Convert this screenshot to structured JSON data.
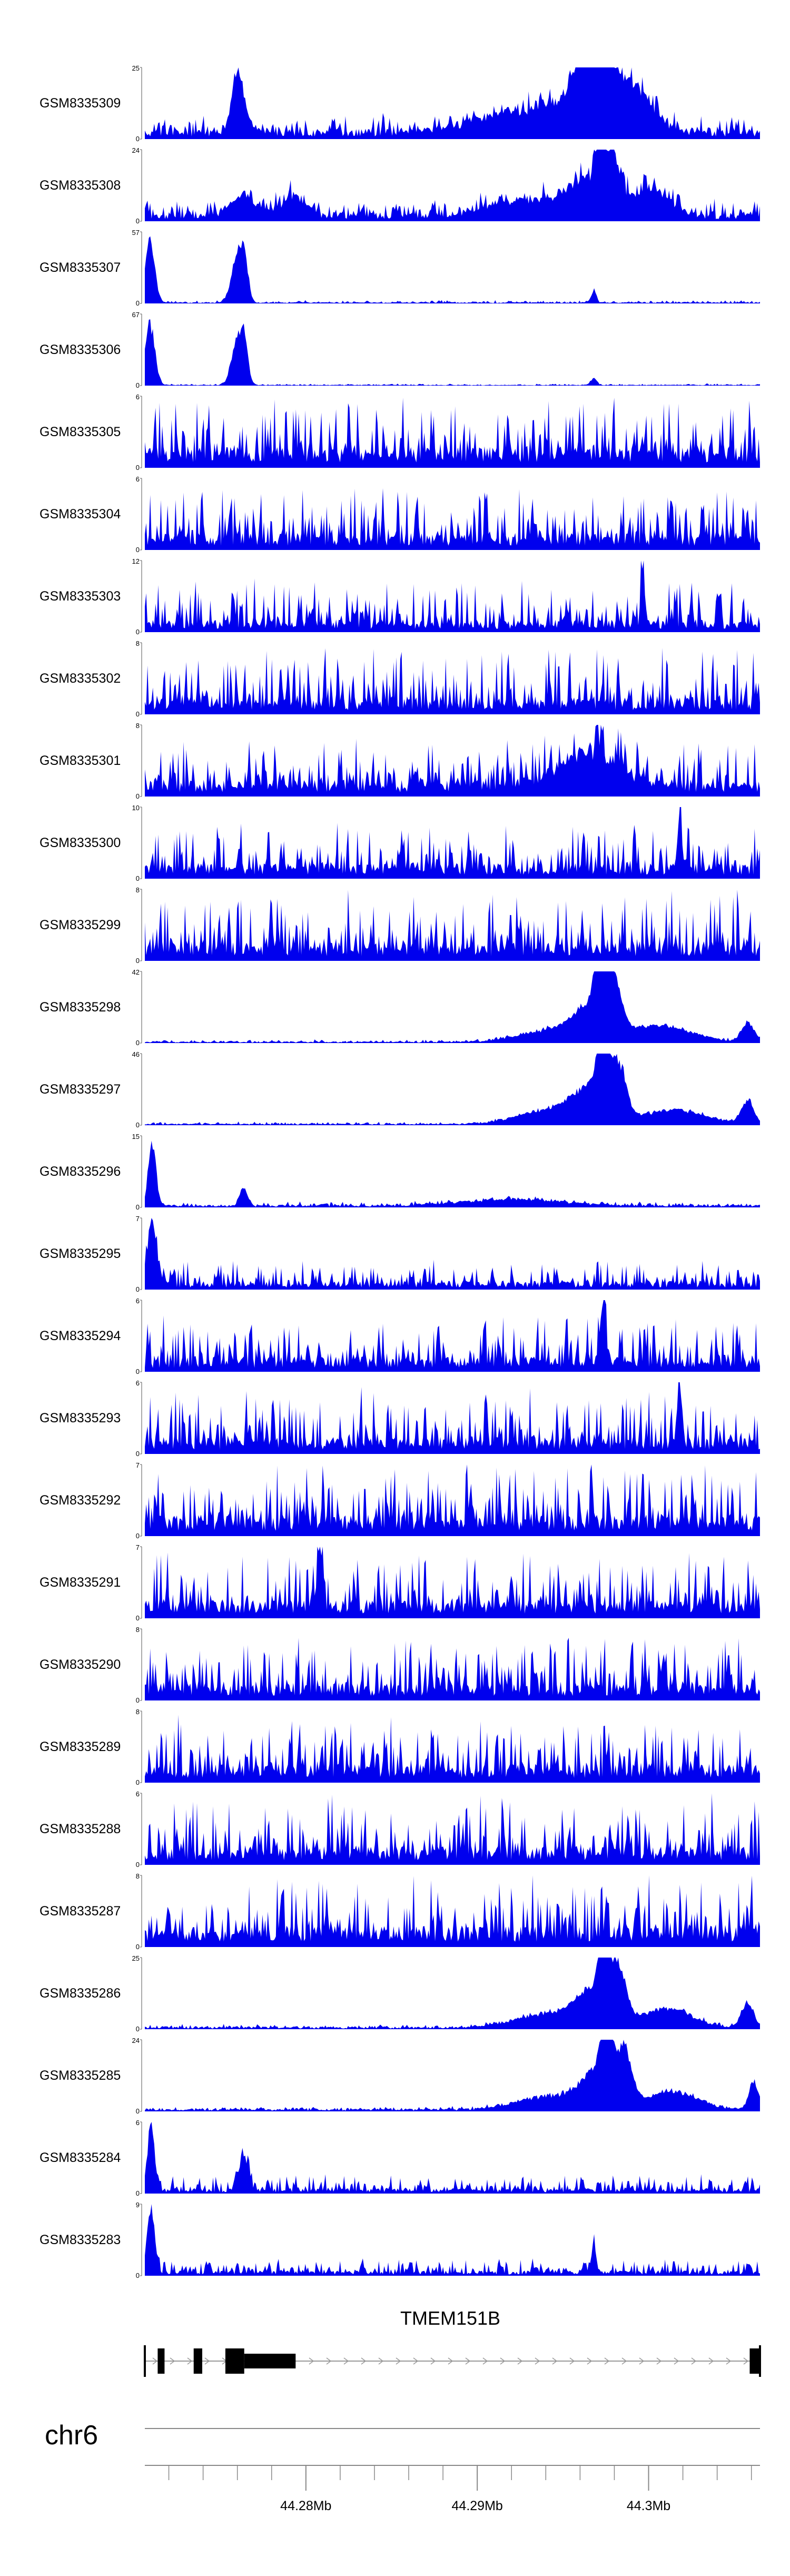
{
  "chart_data": {
    "type": "area",
    "title": "",
    "xlabel": "",
    "ylabel": "",
    "x_range_mb": [
      44.2706,
      44.3065
    ],
    "colors": {
      "track_fill": "#0000ee",
      "gene": "#000000",
      "axis": "#888888"
    },
    "tracks": [
      {
        "name": "GSM8335309",
        "ymax": 25,
        "ymin": 0,
        "base": 0.12,
        "noise": 0.22,
        "seed": 1,
        "peaks": [
          [
            0.15,
            0.55,
            0.008
          ],
          [
            0.155,
            0.42,
            0.012
          ],
          [
            0.62,
            0.35,
            0.08
          ],
          [
            0.74,
            0.75,
            0.04
          ],
          [
            0.745,
            0.98,
            0.008
          ],
          [
            0.8,
            0.45,
            0.03
          ],
          [
            0.72,
            0.6,
            0.02
          ]
        ]
      },
      {
        "name": "GSM8335308",
        "ymax": 24,
        "ymin": 0,
        "base": 0.1,
        "noise": 0.22,
        "seed": 2,
        "peaks": [
          [
            0.16,
            0.32,
            0.02
          ],
          [
            0.24,
            0.28,
            0.02
          ],
          [
            0.62,
            0.25,
            0.06
          ],
          [
            0.72,
            0.55,
            0.03
          ],
          [
            0.74,
            0.96,
            0.006
          ],
          [
            0.76,
            0.8,
            0.01
          ],
          [
            0.82,
            0.45,
            0.03
          ]
        ]
      },
      {
        "name": "GSM8335307",
        "ymax": 57,
        "ymin": 0,
        "base": 0.015,
        "noise": 0.03,
        "seed": 3,
        "peaks": [
          [
            0.008,
            0.98,
            0.008
          ],
          [
            0.15,
            0.7,
            0.009
          ],
          [
            0.162,
            0.6,
            0.006
          ],
          [
            0.73,
            0.2,
            0.004
          ]
        ]
      },
      {
        "name": "GSM8335306",
        "ymax": 67,
        "ymin": 0,
        "base": 0.01,
        "noise": 0.02,
        "seed": 4,
        "peaks": [
          [
            0.008,
            0.96,
            0.008
          ],
          [
            0.15,
            0.68,
            0.009
          ],
          [
            0.162,
            0.58,
            0.006
          ],
          [
            0.73,
            0.1,
            0.005
          ]
        ]
      },
      {
        "name": "GSM8335305",
        "ymax": 6,
        "ymin": 0,
        "base": 0.25,
        "noise": 0.75,
        "seed": 5,
        "peaks": []
      },
      {
        "name": "GSM8335304",
        "ymax": 6,
        "ymin": 0,
        "base": 0.2,
        "noise": 0.7,
        "seed": 6,
        "peaks": []
      },
      {
        "name": "GSM8335303",
        "ymax": 12,
        "ymin": 0,
        "base": 0.15,
        "noise": 0.6,
        "seed": 7,
        "peaks": [
          [
            0.81,
            0.98,
            0.003
          ]
        ]
      },
      {
        "name": "GSM8335302",
        "ymax": 8,
        "ymin": 0,
        "base": 0.2,
        "noise": 0.75,
        "seed": 8,
        "peaks": []
      },
      {
        "name": "GSM8335301",
        "ymax": 8,
        "ymin": 0,
        "base": 0.2,
        "noise": 0.6,
        "seed": 9,
        "peaks": [
          [
            0.72,
            0.5,
            0.05
          ]
        ]
      },
      {
        "name": "GSM8335300",
        "ymax": 10,
        "ymin": 0,
        "base": 0.18,
        "noise": 0.6,
        "seed": 10,
        "peaks": [
          [
            0.87,
            0.95,
            0.003
          ]
        ]
      },
      {
        "name": "GSM8335299",
        "ymax": 8,
        "ymin": 0,
        "base": 0.22,
        "noise": 0.75,
        "seed": 11,
        "peaks": []
      },
      {
        "name": "GSM8335298",
        "ymax": 42,
        "ymin": 0,
        "base": 0.02,
        "noise": 0.03,
        "seed": 12,
        "peaks": [
          [
            0.66,
            0.18,
            0.05
          ],
          [
            0.73,
            0.55,
            0.03
          ],
          [
            0.74,
            0.95,
            0.008
          ],
          [
            0.76,
            0.8,
            0.012
          ],
          [
            0.84,
            0.25,
            0.05
          ],
          [
            0.98,
            0.3,
            0.01
          ]
        ]
      },
      {
        "name": "GSM8335297",
        "ymax": 46,
        "ymin": 0,
        "base": 0.02,
        "noise": 0.03,
        "seed": 13,
        "peaks": [
          [
            0.66,
            0.22,
            0.05
          ],
          [
            0.73,
            0.55,
            0.03
          ],
          [
            0.745,
            0.97,
            0.008
          ],
          [
            0.77,
            0.7,
            0.012
          ],
          [
            0.86,
            0.22,
            0.05
          ],
          [
            0.98,
            0.35,
            0.01
          ]
        ]
      },
      {
        "name": "GSM8335296",
        "ymax": 15,
        "ymin": 0,
        "base": 0.03,
        "noise": 0.05,
        "seed": 14,
        "peaks": [
          [
            0.012,
            0.98,
            0.006
          ],
          [
            0.16,
            0.28,
            0.006
          ],
          [
            0.6,
            0.1,
            0.08
          ]
        ]
      },
      {
        "name": "GSM8335295",
        "ymax": 7,
        "ymin": 0,
        "base": 0.1,
        "noise": 0.3,
        "seed": 15,
        "peaks": [
          [
            0.012,
            0.95,
            0.008
          ]
        ]
      },
      {
        "name": "GSM8335294",
        "ymax": 6,
        "ymin": 0,
        "base": 0.18,
        "noise": 0.6,
        "seed": 16,
        "peaks": [
          [
            0.745,
            0.95,
            0.005
          ]
        ]
      },
      {
        "name": "GSM8335293",
        "ymax": 6,
        "ymin": 0,
        "base": 0.2,
        "noise": 0.7,
        "seed": 17,
        "peaks": [
          [
            0.87,
            0.9,
            0.004
          ]
        ]
      },
      {
        "name": "GSM8335292",
        "ymax": 7,
        "ymin": 0,
        "base": 0.25,
        "noise": 0.75,
        "seed": 18,
        "peaks": []
      },
      {
        "name": "GSM8335291",
        "ymax": 7,
        "ymin": 0,
        "base": 0.22,
        "noise": 0.7,
        "seed": 19,
        "peaks": [
          [
            0.285,
            0.95,
            0.004
          ]
        ]
      },
      {
        "name": "GSM8335290",
        "ymax": 8,
        "ymin": 0,
        "base": 0.2,
        "noise": 0.7,
        "seed": 20,
        "peaks": []
      },
      {
        "name": "GSM8335289",
        "ymax": 8,
        "ymin": 0,
        "base": 0.22,
        "noise": 0.7,
        "seed": 21,
        "peaks": []
      },
      {
        "name": "GSM8335288",
        "ymax": 6,
        "ymin": 0,
        "base": 0.22,
        "noise": 0.75,
        "seed": 22,
        "peaks": []
      },
      {
        "name": "GSM8335287",
        "ymax": 8,
        "ymin": 0,
        "base": 0.25,
        "noise": 0.75,
        "seed": 23,
        "peaks": []
      },
      {
        "name": "GSM8335286",
        "ymax": 25,
        "ymin": 0,
        "base": 0.03,
        "noise": 0.04,
        "seed": 24,
        "peaks": [
          [
            0.65,
            0.2,
            0.05
          ],
          [
            0.73,
            0.55,
            0.03
          ],
          [
            0.745,
            0.96,
            0.008
          ],
          [
            0.77,
            0.75,
            0.012
          ],
          [
            0.85,
            0.3,
            0.04
          ],
          [
            0.98,
            0.4,
            0.01
          ]
        ]
      },
      {
        "name": "GSM8335285",
        "ymax": 24,
        "ymin": 0,
        "base": 0.03,
        "noise": 0.04,
        "seed": 25,
        "peaks": [
          [
            0.65,
            0.2,
            0.05
          ],
          [
            0.74,
            0.6,
            0.03
          ],
          [
            0.75,
            0.96,
            0.008
          ],
          [
            0.78,
            0.7,
            0.012
          ],
          [
            0.86,
            0.28,
            0.04
          ],
          [
            0.99,
            0.42,
            0.008
          ]
        ]
      },
      {
        "name": "GSM8335284",
        "ymax": 6,
        "ymin": 0,
        "base": 0.06,
        "noise": 0.22,
        "seed": 26,
        "peaks": [
          [
            0.01,
            0.98,
            0.006
          ],
          [
            0.16,
            0.55,
            0.008
          ]
        ]
      },
      {
        "name": "GSM8335283",
        "ymax": 9,
        "ymin": 0,
        "base": 0.06,
        "noise": 0.18,
        "seed": 27,
        "peaks": [
          [
            0.01,
            0.98,
            0.006
          ],
          [
            0.73,
            0.45,
            0.004
          ]
        ]
      }
    ],
    "gene": {
      "name": "TMEM151B",
      "exons": [
        {
          "start": 44.2706,
          "end": 44.27066,
          "thick": false
        },
        {
          "start": 44.27135,
          "end": 44.27175,
          "thick": true
        },
        {
          "start": 44.27345,
          "end": 44.27395,
          "thick": true
        },
        {
          "start": 44.2753,
          "end": 44.2764,
          "thick": true
        },
        {
          "start": 44.2764,
          "end": 44.2794,
          "thick": false
        },
        {
          "start": 44.30645,
          "end": 44.3065,
          "thick": false
        },
        {
          "start": 44.3059,
          "end": 44.30645,
          "thick": true
        }
      ],
      "intron_start": 44.2706,
      "intron_end": 44.3065
    },
    "chromosome": "chr6",
    "axis": {
      "major_ticks": [
        44.28,
        44.29,
        44.3
      ],
      "tick_labels": [
        "44.28Mb",
        "44.29Mb",
        "44.3Mb"
      ],
      "minor_step": 0.002
    }
  }
}
